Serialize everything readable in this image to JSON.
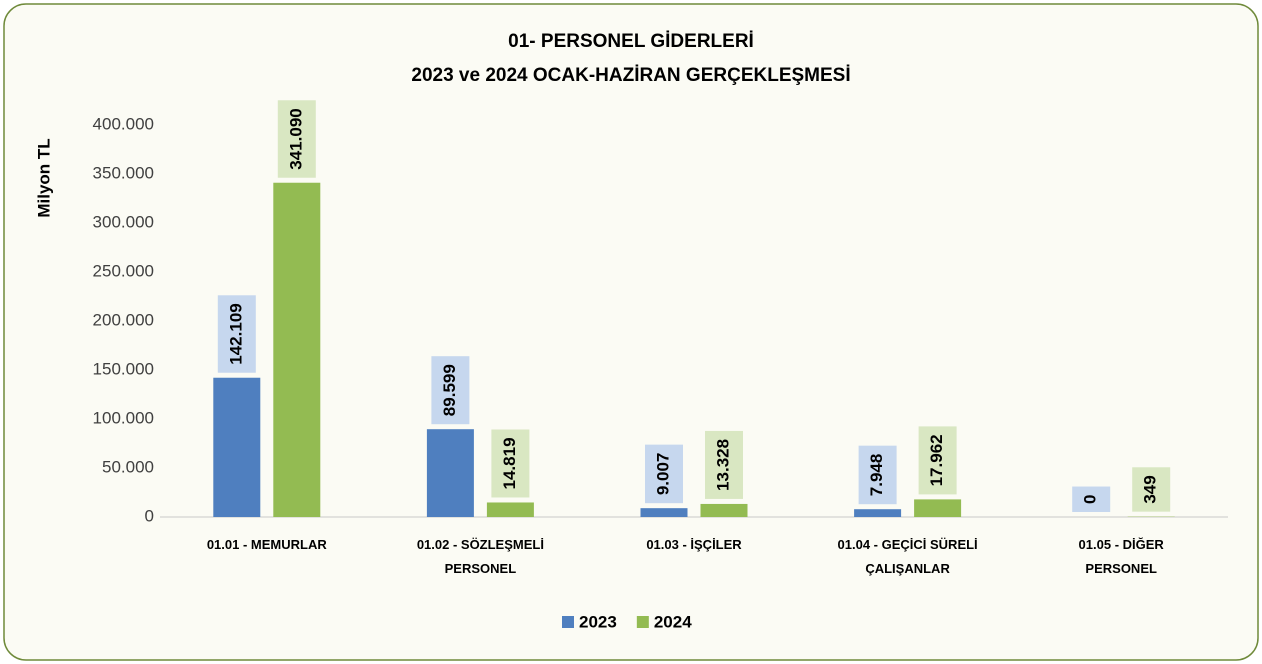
{
  "chart_data": {
    "type": "bar",
    "title": "01- PERSONEL GİDERLERİ",
    "subtitle": "2023 ve 2024 OCAK-HAZİRAN GERÇEKLEŞMESİ",
    "y_axis_label": "Milyon TL",
    "categories": [
      "01.01 - MEMURLAR",
      "01.02 - SÖZLEŞMELİ PERSONEL",
      "01.03 - İŞÇİLER",
      "01.04 - GEÇİCİ SÜRELİ ÇALIŞANLAR",
      "01.05 - DİĞER PERSONEL"
    ],
    "series": [
      {
        "name": "2023",
        "color": "#4f7fbf",
        "label_color": "#c6d7ee",
        "values": [
          142109,
          89599,
          9007,
          7948,
          0
        ],
        "value_labels": [
          "142.109",
          "89.599",
          "9.007",
          "7.948",
          "0"
        ]
      },
      {
        "name": "2024",
        "color": "#93bb52",
        "label_color": "#d9e7c2",
        "values": [
          341090,
          14819,
          13328,
          17962,
          349
        ],
        "value_labels": [
          "341.090",
          "14.819",
          "13.328",
          "17.962",
          "349"
        ]
      }
    ],
    "ylim": [
      0,
      400000
    ],
    "yticks": [
      0,
      {
        "value": 50000,
        "label": "50.000"
      },
      {
        "value": 100000,
        "label": "100.000"
      },
      {
        "value": 150000,
        "label": "150.000"
      },
      {
        "value": 200000,
        "label": "200.000"
      },
      {
        "value": 250000,
        "label": "250.000"
      },
      {
        "value": 300000,
        "label": "300.000"
      },
      {
        "value": 350000,
        "label": "350.000"
      },
      {
        "value": 400000,
        "label": "400.000"
      }
    ],
    "grid": false,
    "legend": "bottom"
  }
}
